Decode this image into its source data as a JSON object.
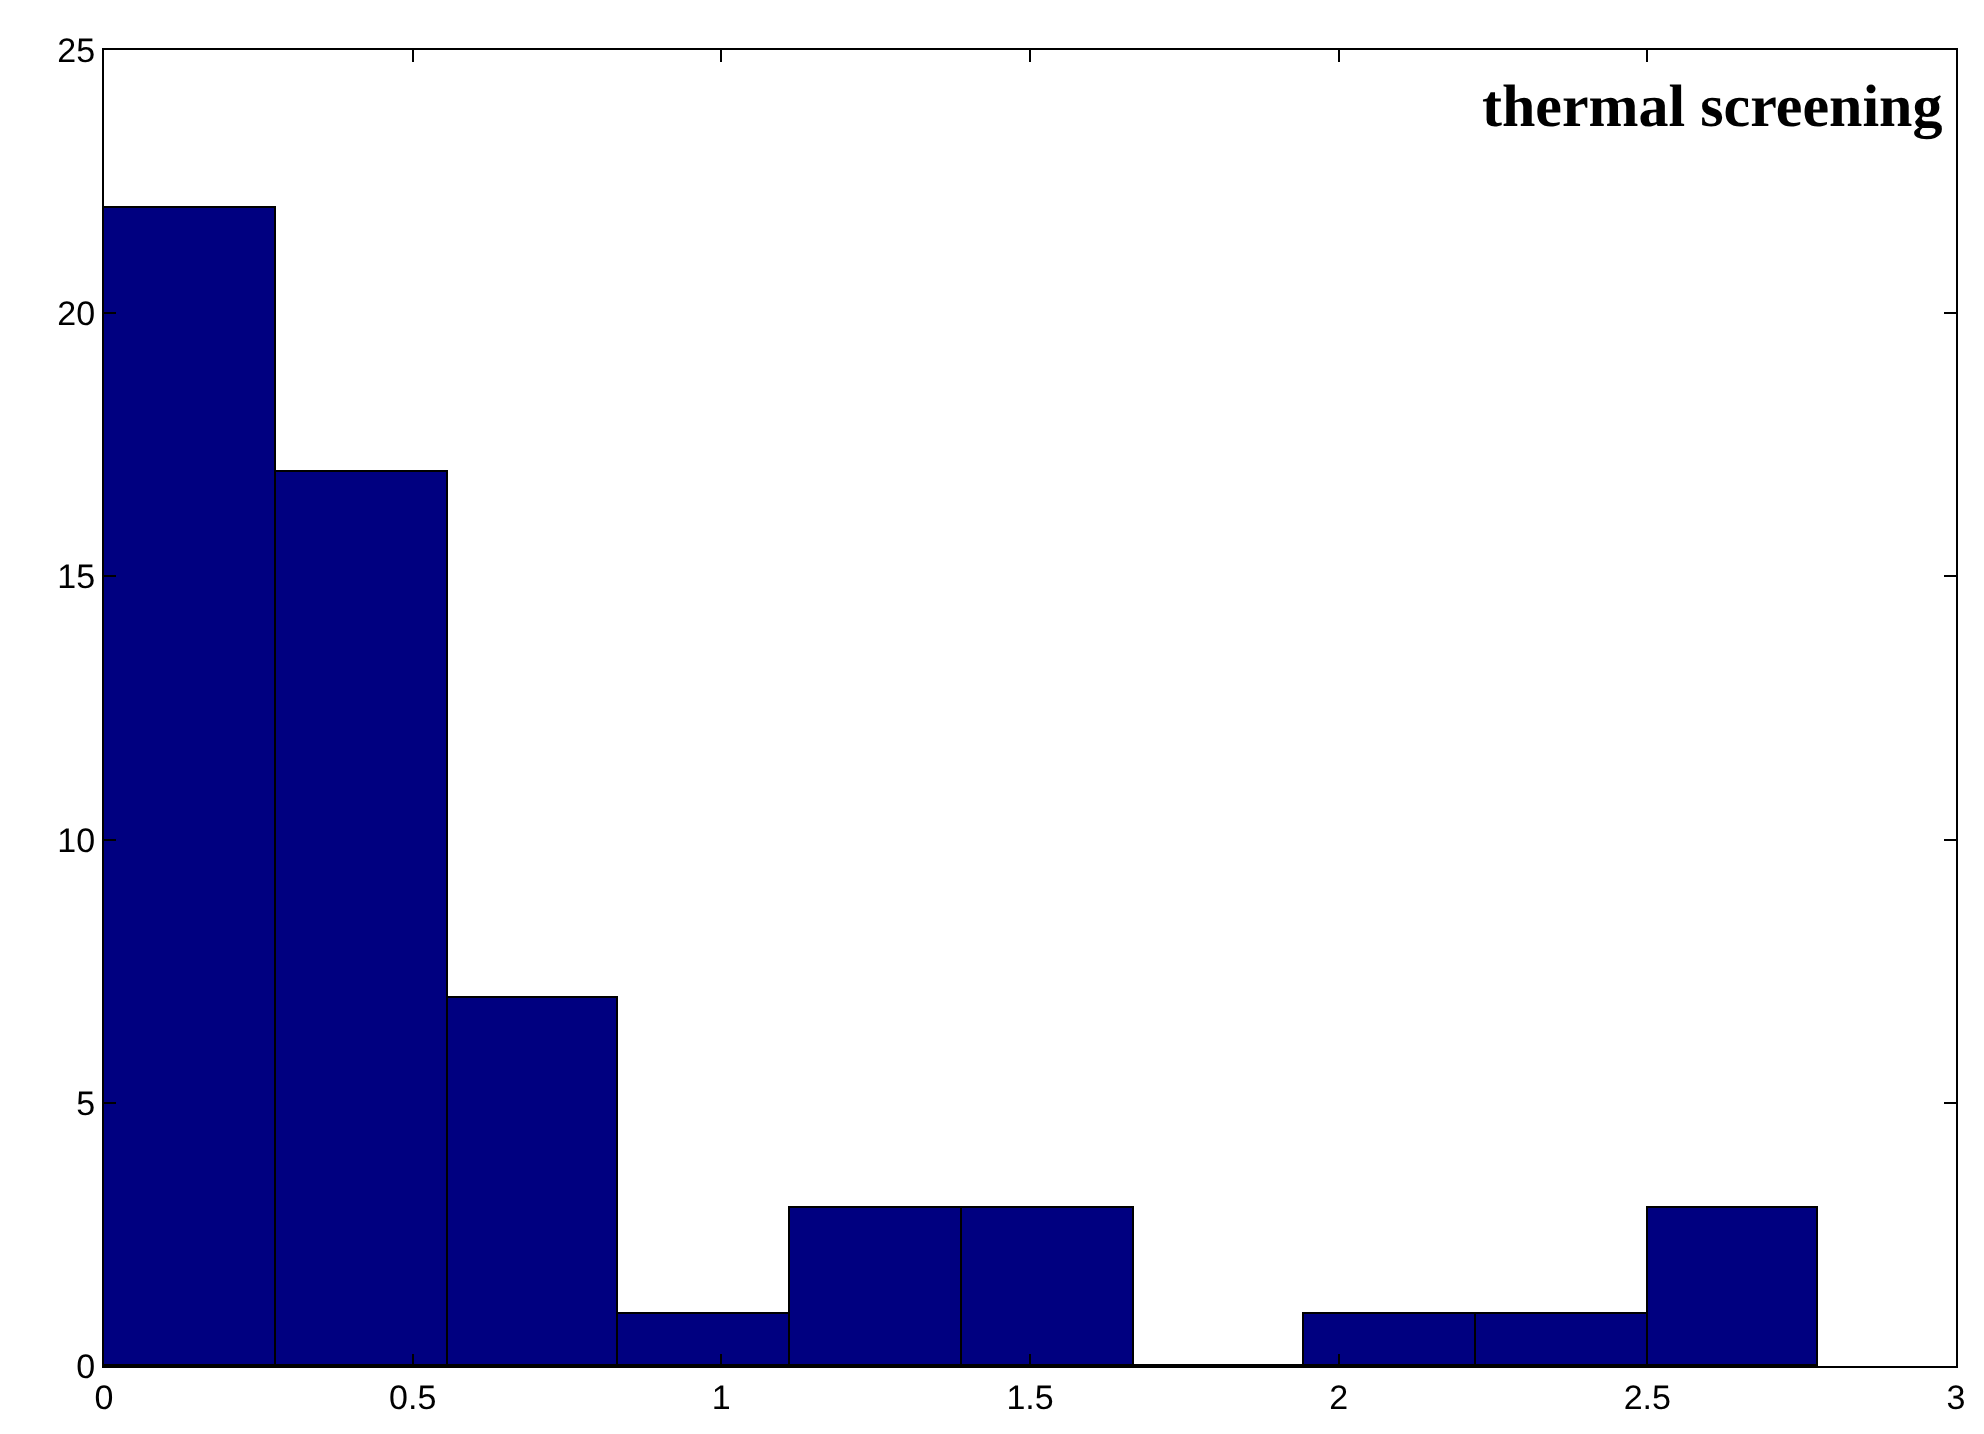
{
  "chart_data": {
    "type": "histogram",
    "annotations": [
      "thermal screening"
    ],
    "bins": [
      0,
      0.278,
      0.556,
      0.833,
      1.111,
      1.389,
      1.667,
      1.944,
      2.222,
      2.5,
      2.778
    ],
    "values": [
      22,
      17,
      7,
      1,
      3,
      3,
      0,
      1,
      1,
      3
    ],
    "color": "#000080",
    "xlim": [
      0,
      3
    ],
    "xticks": [
      0,
      0.5,
      1,
      1.5,
      2,
      2.5,
      3
    ],
    "ylim": [
      0,
      25
    ],
    "yticks": [
      0,
      5,
      10,
      15,
      20,
      25
    ],
    "legend": false
  }
}
